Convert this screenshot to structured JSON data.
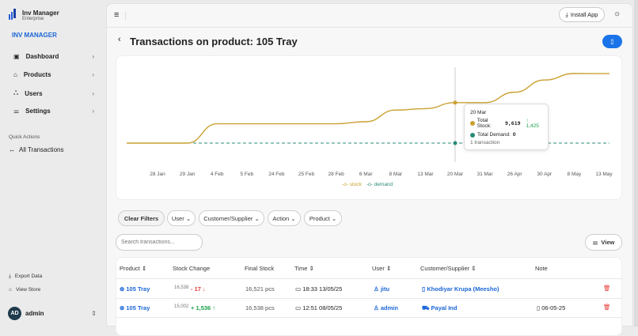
{
  "app": {
    "name": "Inv Manager",
    "edition": "Enterprise",
    "section_title": "INV MANAGER"
  },
  "sidebar": {
    "items": [
      {
        "label": "Dashboard",
        "icon": "dashboard-icon"
      },
      {
        "label": "Products",
        "icon": "tag-icon"
      },
      {
        "label": "Users",
        "icon": "users-icon"
      },
      {
        "label": "Settings",
        "icon": "sliders-icon"
      }
    ],
    "quick_actions_label": "Quick Actions",
    "quick_actions": [
      {
        "label": "All Transactions",
        "icon": "arrows-horizontal-icon"
      }
    ],
    "footer": [
      {
        "label": "Export Data",
        "icon": "download-icon"
      },
      {
        "label": "View Store",
        "icon": "store-icon"
      }
    ],
    "user": {
      "initials": "AD",
      "name": "admin"
    }
  },
  "header": {
    "install_label": "Install App"
  },
  "page": {
    "title": "Transactions on product: 105 Tray"
  },
  "chart_data": {
    "type": "line",
    "categories": [
      "28 Jan",
      "29 Jan",
      "4 Feb",
      "5 Feb",
      "24 Feb",
      "25 Feb",
      "28 Feb",
      "6 Mar",
      "8 Mar",
      "13 Mar",
      "20 Mar",
      "31 Mar",
      "26 Apr",
      "30 Apr",
      "8 May",
      "13 May"
    ],
    "series": [
      {
        "name": "stock",
        "color": "#c9a030",
        "values": [
          0,
          0,
          4600,
          4600,
          4600,
          4600,
          4600,
          5100,
          7850,
          8194,
          9619,
          9619,
          12100,
          15002,
          16538,
          16521
        ]
      },
      {
        "name": "demand",
        "color": "#2a8a78",
        "values": [
          0,
          0,
          0,
          0,
          0,
          0,
          0,
          0,
          0,
          0,
          0,
          0,
          0,
          0,
          0,
          0
        ]
      }
    ],
    "grid": false,
    "legend": "bottom",
    "tooltip": {
      "date": "20 Mar",
      "stock_label": "Total Stock:",
      "stock_value": "9,619",
      "stock_change": "↑ 1,425",
      "demand_label": "Total Demand:",
      "demand_value": "0",
      "count": "1 transaction"
    }
  },
  "filters": {
    "clear": "Clear Filters",
    "items": [
      "User",
      "Customer/Supplier",
      "Action",
      "Product"
    ],
    "search_placeholder": "Search transactions...",
    "view": "View"
  },
  "table": {
    "headers": [
      "Product",
      "Stock Change",
      "Final Stock",
      "Time",
      "User",
      "Customer/Supplier",
      "Note"
    ],
    "rows": [
      {
        "product": "105 Tray",
        "prev": "16,538",
        "change": "- 17",
        "dir": "down",
        "final": "16,521",
        "unit": "pcs",
        "time": "18:33 13/05/25",
        "user": "jitu",
        "party": "Khodiyar Krupa (Meesho)",
        "party_icon": "building-icon",
        "note": ""
      },
      {
        "product": "105 Tray",
        "prev": "15,002",
        "change": "+ 1,536",
        "dir": "up",
        "final": "16,538",
        "unit": "pcs",
        "time": "12:51 08/05/25",
        "user": "admin",
        "party": "Payal Ind",
        "party_icon": "truck-icon",
        "note": "06-05-25"
      }
    ]
  },
  "colors": {
    "accent": "#1a73e8",
    "stock": "#c9a030",
    "demand": "#2a8a78",
    "up": "#1aa34a",
    "down": "#e53935"
  }
}
